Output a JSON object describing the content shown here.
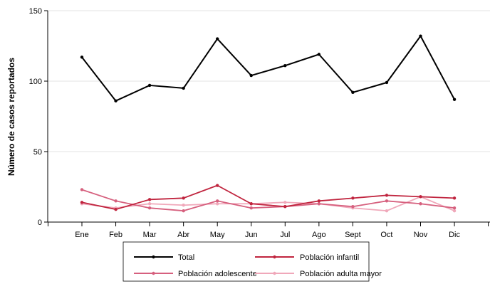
{
  "chart_data": {
    "type": "line",
    "ylabel": "Número de casos reportados",
    "ylim": [
      0,
      150
    ],
    "yticks": [
      0,
      50,
      100,
      150
    ],
    "categories": [
      "Ene",
      "Feb",
      "Mar",
      "Abr",
      "May",
      "Jun",
      "Jul",
      "Ago",
      "Sept",
      "Oct",
      "Nov",
      "Dic"
    ],
    "grid": "horizontal",
    "legend_position": "bottom",
    "series": [
      {
        "name": "Total",
        "color": "#000000",
        "values": [
          117,
          86,
          97,
          95,
          130,
          104,
          111,
          119,
          92,
          99,
          132,
          87
        ]
      },
      {
        "name": "Población infantil",
        "color": "#c0243e",
        "values": [
          14,
          9,
          16,
          17,
          26,
          13,
          11,
          15,
          17,
          19,
          18,
          17
        ]
      },
      {
        "name": "Población adolescente",
        "color": "#d6607e",
        "values": [
          23,
          15,
          10,
          8,
          15,
          10,
          11,
          13,
          11,
          15,
          13,
          10
        ]
      },
      {
        "name": "Población adulta mayor",
        "color": "#f0a8ba",
        "values": [
          13,
          10,
          13,
          12,
          13,
          13,
          14,
          13,
          10,
          8,
          18,
          8
        ]
      }
    ]
  }
}
